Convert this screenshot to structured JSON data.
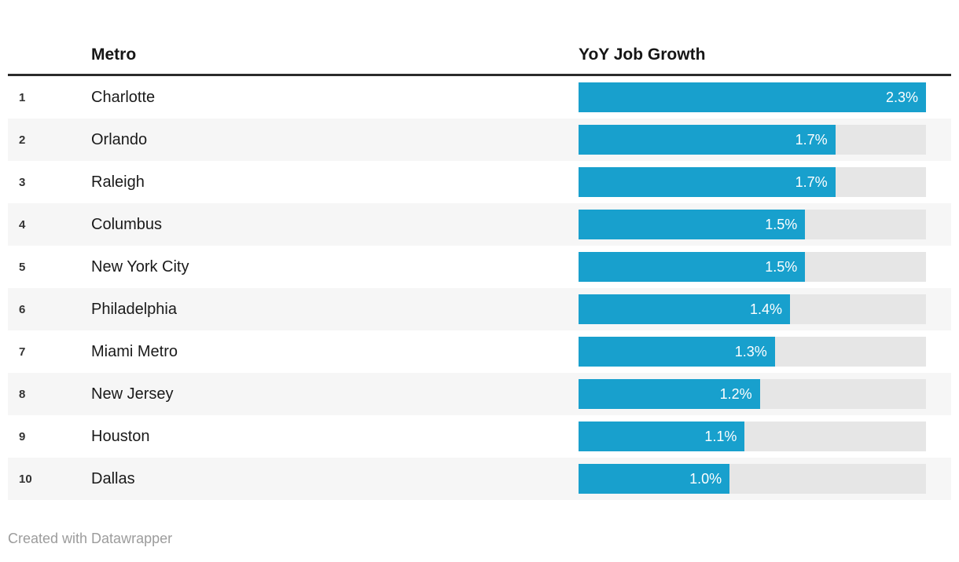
{
  "header": {
    "rank_label": "",
    "metro_label": "Metro",
    "growth_label": "YoY Job Growth"
  },
  "rows": [
    {
      "rank": "1",
      "metro": "Charlotte",
      "value": 2.3,
      "value_label": "2.3%"
    },
    {
      "rank": "2",
      "metro": "Orlando",
      "value": 1.7,
      "value_label": "1.7%"
    },
    {
      "rank": "3",
      "metro": "Raleigh",
      "value": 1.7,
      "value_label": "1.7%"
    },
    {
      "rank": "4",
      "metro": "Columbus",
      "value": 1.5,
      "value_label": "1.5%"
    },
    {
      "rank": "5",
      "metro": "New York City",
      "value": 1.5,
      "value_label": "1.5%"
    },
    {
      "rank": "6",
      "metro": "Philadelphia",
      "value": 1.4,
      "value_label": "1.4%"
    },
    {
      "rank": "7",
      "metro": "Miami Metro",
      "value": 1.3,
      "value_label": "1.3%"
    },
    {
      "rank": "8",
      "metro": "New Jersey",
      "value": 1.2,
      "value_label": "1.2%"
    },
    {
      "rank": "9",
      "metro": "Houston",
      "value": 1.1,
      "value_label": "1.1%"
    },
    {
      "rank": "10",
      "metro": "Dallas",
      "value": 1.0,
      "value_label": "1.0%"
    }
  ],
  "footer": {
    "credit": "Created with Datawrapper"
  },
  "colors": {
    "bar": "#18a0cd",
    "track": "#e6e6e6",
    "stripe": "#f6f6f6",
    "header_rule": "#2b2b2b",
    "value_text": "#ffffff",
    "footer_text": "#9c9c9c"
  },
  "chart_data": {
    "type": "bar",
    "orientation": "horizontal",
    "title": "",
    "columns": [
      "Metro",
      "YoY Job Growth"
    ],
    "categories": [
      "Charlotte",
      "Orlando",
      "Raleigh",
      "Columbus",
      "New York City",
      "Philadelphia",
      "Miami Metro",
      "New Jersey",
      "Houston",
      "Dallas"
    ],
    "ranks": [
      1,
      2,
      3,
      4,
      5,
      6,
      7,
      8,
      9,
      10
    ],
    "values": [
      2.3,
      1.7,
      1.7,
      1.5,
      1.5,
      1.4,
      1.3,
      1.2,
      1.1,
      1.0
    ],
    "value_labels": [
      "2.3%",
      "1.7%",
      "1.7%",
      "1.5%",
      "1.5%",
      "1.4%",
      "1.3%",
      "1.2%",
      "1.1%",
      "1.0%"
    ],
    "xlim": [
      0,
      2.3
    ],
    "unit": "%",
    "grid": false,
    "legend": false,
    "bar_color": "#18a0cd"
  }
}
